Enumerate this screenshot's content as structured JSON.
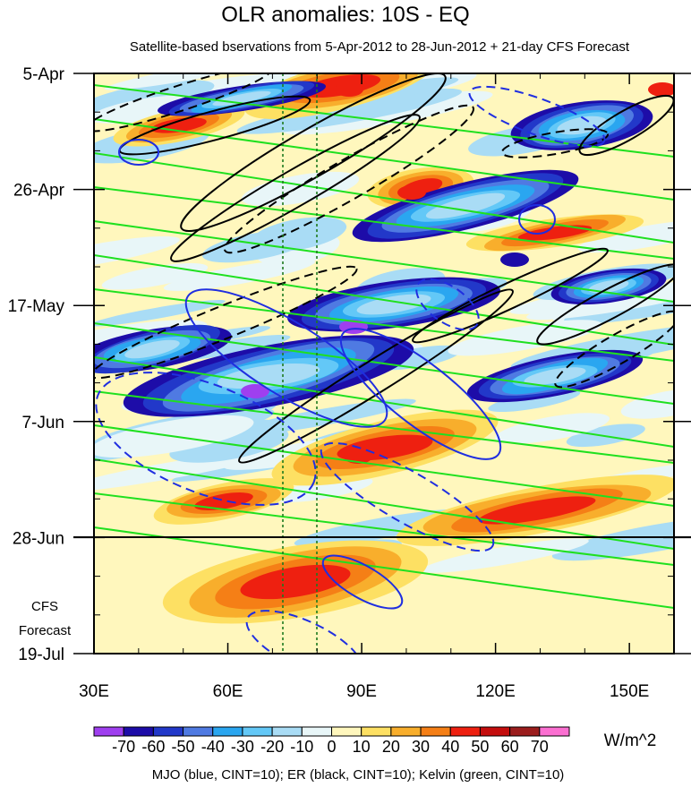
{
  "chart_data": {
    "type": "heatmap",
    "title": "OLR anomalies: 10S - EQ",
    "subtitle": "Satellite-based bservations from 5-Apr-2012 to 28-Jun-2012 + 21-day CFS Forecast",
    "x_ticks": [
      "30E",
      "60E",
      "90E",
      "120E",
      "150E"
    ],
    "xlim": [
      30,
      160
    ],
    "y_ticks": [
      "5-Apr",
      "26-Apr",
      "17-May",
      "7-Jun",
      "28-Jun",
      "19-Jul"
    ],
    "forecast_label": [
      "CFS",
      "Forecast"
    ],
    "observation_end": "28-Jun",
    "colorbar": {
      "labels": [
        "-70",
        "-60",
        "-50",
        "-40",
        "-30",
        "-20",
        "-10",
        "0",
        "10",
        "20",
        "30",
        "40",
        "50",
        "60",
        "70"
      ],
      "colors": [
        "#9f3fef",
        "#1d0ca8",
        "#2238c9",
        "#4f7ae2",
        "#2aa6f0",
        "#63c8f7",
        "#a9dcf5",
        "#e8f6f8",
        "#fff7bd",
        "#fde063",
        "#f8ae2c",
        "#f57f16",
        "#ee2010",
        "#c40d0d",
        "#9b1d1d",
        "#fb6fd1"
      ],
      "units": "W/m^2"
    },
    "footer": "MJO (blue, CINT=10); ER (black, CINT=10); Kelvin (green, CINT=10)",
    "overlays": {
      "mjo_color": "#1f2ee0",
      "er_color": "#000000",
      "kelvin_color": "#1fe01f",
      "reference_line_color": "#1e7a1e"
    }
  }
}
